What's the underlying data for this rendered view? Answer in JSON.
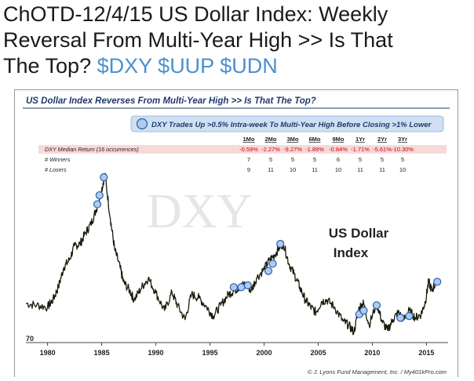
{
  "post": {
    "title_line1": "ChOTD-12/4/15  US Dollar Index: Weekly",
    "title_line2": "Reversal From Multi-Year High >> Is That",
    "title_line3_prefix": "The Top?",
    "tickers": [
      "$DXY",
      "$UUP",
      "$UDN"
    ]
  },
  "colors": {
    "ticker": "#4a90d0",
    "line": "#1a1a0a",
    "marker_fill": "#aecbf0",
    "marker_stroke": "#2a5ea8",
    "table_header_bg": "#cfe0f3",
    "table_row_highlight": "#f8d9d9",
    "negative_text": "#cc0000",
    "chart_title": "#1f3a6b"
  },
  "chart_data": {
    "type": "line",
    "title": "US Dollar Index Reverses From Multi-Year High >> Is That The Top?",
    "watermark": "DXY",
    "series_label_line1": "US Dollar",
    "series_label_line2": "Index",
    "credit": "© J. Lyons Fund Management, Inc. / My401kPro.com",
    "x_ticks": [
      1980,
      1985,
      1990,
      1995,
      2000,
      2005,
      2010,
      2015
    ],
    "y_tick_labels": [
      70
    ],
    "xlim": [
      1978,
      2017
    ],
    "ylim": [
      68,
      165
    ],
    "series": [
      {
        "values": [
          [
            1978.0,
            88
          ],
          [
            1979.0,
            87
          ],
          [
            1980.0,
            86
          ],
          [
            1980.5,
            90
          ],
          [
            1981.0,
            97
          ],
          [
            1981.5,
            108
          ],
          [
            1982.0,
            112
          ],
          [
            1982.5,
            120
          ],
          [
            1983.0,
            121
          ],
          [
            1983.5,
            127
          ],
          [
            1984.0,
            132
          ],
          [
            1984.5,
            140
          ],
          [
            1985.0,
            151
          ],
          [
            1985.3,
            160
          ],
          [
            1985.8,
            135
          ],
          [
            1986.2,
            118
          ],
          [
            1986.7,
            108
          ],
          [
            1987.0,
            100
          ],
          [
            1987.6,
            95
          ],
          [
            1988.0,
            90
          ],
          [
            1988.7,
            97
          ],
          [
            1989.3,
            102
          ],
          [
            1990.0,
            94
          ],
          [
            1990.8,
            84
          ],
          [
            1991.5,
            94
          ],
          [
            1992.0,
            87
          ],
          [
            1992.7,
            79
          ],
          [
            1993.3,
            93
          ],
          [
            1994.0,
            91
          ],
          [
            1994.7,
            86
          ],
          [
            1995.3,
            81
          ],
          [
            1996.0,
            87
          ],
          [
            1996.7,
            93
          ],
          [
            1997.2,
            95
          ],
          [
            1997.7,
            97
          ],
          [
            1998.3,
            99
          ],
          [
            1998.8,
            95
          ],
          [
            1999.3,
            102
          ],
          [
            2000.0,
            107
          ],
          [
            2000.5,
            112
          ],
          [
            2001.0,
            115
          ],
          [
            2001.5,
            120
          ],
          [
            2001.8,
            121
          ],
          [
            2002.3,
            110
          ],
          [
            2002.8,
            104
          ],
          [
            2003.3,
            97
          ],
          [
            2003.8,
            90
          ],
          [
            2004.3,
            86
          ],
          [
            2004.8,
            83
          ],
          [
            2005.3,
            89
          ],
          [
            2005.8,
            90
          ],
          [
            2006.5,
            86
          ],
          [
            2007.3,
            78
          ],
          [
            2007.8,
            76
          ],
          [
            2008.3,
            72
          ],
          [
            2008.8,
            86
          ],
          [
            2009.2,
            88
          ],
          [
            2009.7,
            76
          ],
          [
            2010.4,
            88
          ],
          [
            2010.9,
            78
          ],
          [
            2011.4,
            73
          ],
          [
            2011.9,
            79
          ],
          [
            2012.4,
            83
          ],
          [
            2012.9,
            79
          ],
          [
            2013.4,
            84
          ],
          [
            2014.0,
            80
          ],
          [
            2014.5,
            82
          ],
          [
            2014.9,
            89
          ],
          [
            2015.2,
            100
          ],
          [
            2015.5,
            95
          ],
          [
            2015.9,
            100
          ]
        ]
      }
    ],
    "markers": [
      [
        1984.6,
        143
      ],
      [
        1984.8,
        148
      ],
      [
        1985.2,
        158
      ],
      [
        1997.2,
        97
      ],
      [
        1997.9,
        97
      ],
      [
        1998.5,
        98
      ],
      [
        2000.4,
        106
      ],
      [
        2000.8,
        110
      ],
      [
        2001.5,
        121
      ],
      [
        2008.8,
        82
      ],
      [
        2009.2,
        84
      ],
      [
        2010.4,
        87
      ],
      [
        2012.6,
        80
      ],
      [
        2013.4,
        81
      ],
      [
        2016.0,
        100
      ]
    ]
  },
  "stats_table": {
    "title": "DXY Trades Up >0.5% Intra-week To Multi-Year High Before Closing >1% Lower",
    "columns": [
      "1Mo",
      "2Mo",
      "3Mo",
      "6Mo",
      "9Mo",
      "1Yr",
      "2Yr",
      "3Yr"
    ],
    "rows": [
      {
        "label": "DXY Median Return (16 occurrences)",
        "values": [
          "-0.59%",
          "-2.27%",
          "-9.27%",
          "-1.89%",
          "-0.84%",
          "-1.71%",
          "-5.61%",
          "-10.30%"
        ],
        "negative": true
      },
      {
        "label": "# Winners",
        "values": [
          "7",
          "5",
          "5",
          "5",
          "6",
          "5",
          "5",
          "5"
        ],
        "negative": false
      },
      {
        "label": "# Losers",
        "values": [
          "9",
          "11",
          "10",
          "11",
          "10",
          "11",
          "11",
          "10"
        ],
        "negative": false
      }
    ]
  }
}
